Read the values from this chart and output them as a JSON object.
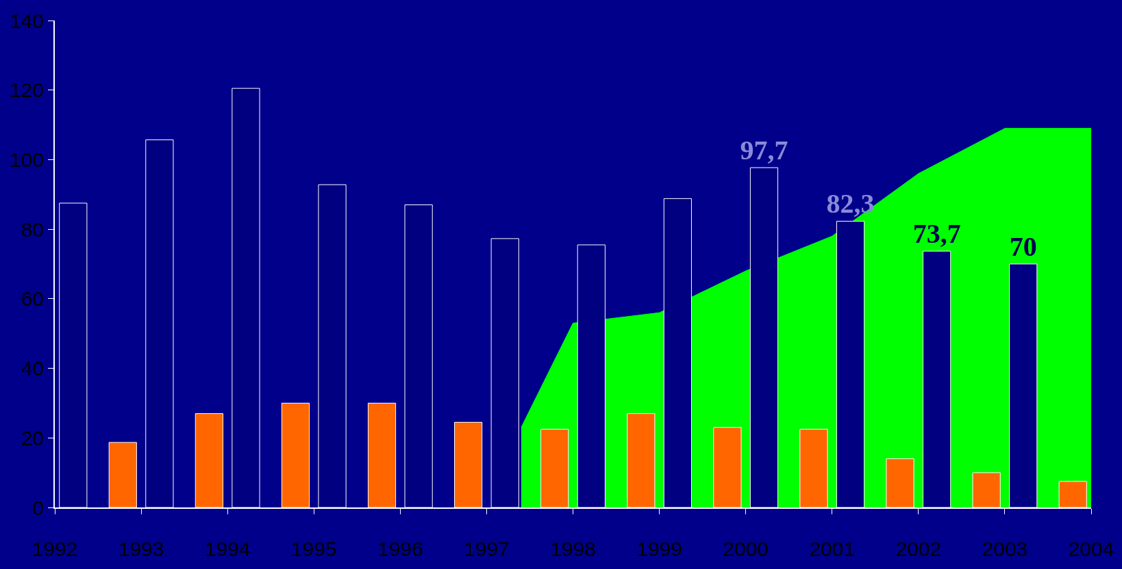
{
  "chart_data": {
    "type": "bar",
    "x": [
      1992,
      1993,
      1994,
      1995,
      1996,
      1997,
      1998,
      1999,
      2000,
      2001,
      2002,
      2003,
      2004
    ],
    "series": [
      {
        "type": "area",
        "color": "#00ff00",
        "x": [
          1997.4,
          1998,
          1999,
          2000,
          2001,
          2002,
          2003,
          2004
        ],
        "values": [
          23,
          53,
          56,
          68,
          78,
          96,
          109,
          109
        ]
      },
      {
        "color": "#ff6600",
        "values": [
          null,
          18.7,
          27,
          30,
          30,
          24.5,
          22.5,
          27,
          23,
          22.5,
          14,
          10,
          7.5
        ]
      },
      {
        "color": "#000080",
        "values": [
          87.5,
          105.7,
          120.5,
          92.8,
          87,
          77.3,
          75.5,
          88.8,
          97.7,
          82.3,
          73.7,
          70,
          null
        ],
        "value_labels": [
          null,
          null,
          null,
          null,
          null,
          null,
          null,
          null,
          "97,7",
          "82,3",
          "73,7",
          "70",
          null
        ]
      }
    ],
    "xlim": [
      1992,
      2004
    ],
    "xticks": [
      1992,
      1993,
      1994,
      1995,
      1996,
      1997,
      1998,
      1999,
      2000,
      2001,
      2002,
      2003,
      2004
    ],
    "ylim": [
      0,
      140
    ],
    "yticks": [
      0,
      20,
      40,
      60,
      80,
      100,
      120,
      140
    ],
    "grid": false
  }
}
